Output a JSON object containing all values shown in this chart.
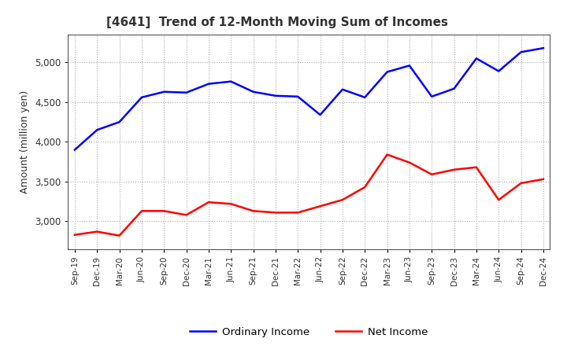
{
  "title": "[4641]  Trend of 12-Month Moving Sum of Incomes",
  "ylabel": "Amount (million yen)",
  "x_labels": [
    "Sep-19",
    "Dec-19",
    "Mar-20",
    "Jun-20",
    "Sep-20",
    "Dec-20",
    "Mar-21",
    "Jun-21",
    "Sep-21",
    "Dec-21",
    "Mar-22",
    "Jun-22",
    "Sep-22",
    "Dec-22",
    "Mar-23",
    "Jun-23",
    "Sep-23",
    "Dec-23",
    "Mar-24",
    "Jun-24",
    "Sep-24",
    "Dec-24"
  ],
  "ordinary_income": [
    3900,
    4150,
    4250,
    4560,
    4630,
    4620,
    4730,
    4760,
    4630,
    4580,
    4570,
    4340,
    4660,
    4560,
    4880,
    4960,
    4570,
    4670,
    5050,
    4890,
    5130,
    5180
  ],
  "net_income": [
    2830,
    2870,
    2820,
    3130,
    3130,
    3080,
    3240,
    3220,
    3130,
    3110,
    3110,
    3190,
    3270,
    3430,
    3840,
    3740,
    3590,
    3650,
    3680,
    3270,
    3480,
    3530
  ],
  "ordinary_color": "#0000ff",
  "net_color": "#ff0000",
  "background_color": "#ffffff",
  "plot_background": "#ffffff",
  "grid_color": "#aaaaaa",
  "title_color": "#333333",
  "ylim_min": 2650,
  "ylim_max": 5350,
  "yticks": [
    3000,
    3500,
    4000,
    4500,
    5000
  ],
  "line_width": 1.8
}
